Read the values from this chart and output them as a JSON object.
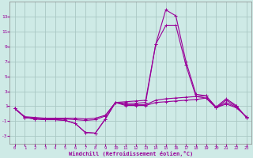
{
  "title": "",
  "xlabel": "Windchill (Refroidissement éolien,°C)",
  "background_color": "#ceeae6",
  "grid_color": "#aac8c4",
  "line_color": "#990099",
  "x_values": [
    0,
    1,
    2,
    3,
    4,
    5,
    6,
    7,
    8,
    9,
    10,
    11,
    12,
    13,
    14,
    15,
    16,
    17,
    18,
    19,
    20,
    21,
    22,
    23
  ],
  "series": [
    [
      0.7,
      -0.5,
      -0.7,
      -0.8,
      -0.8,
      -0.9,
      -1.3,
      -2.5,
      -2.6,
      -0.7,
      1.5,
      1.6,
      1.7,
      1.8,
      9.3,
      13.9,
      13.1,
      7.0,
      2.6,
      2.4,
      0.9,
      2.0,
      1.1,
      -0.5
    ],
    [
      0.7,
      -0.5,
      -0.7,
      -0.8,
      -0.8,
      -0.9,
      -1.3,
      -2.5,
      -2.6,
      -0.7,
      1.5,
      1.4,
      1.4,
      1.5,
      9.3,
      11.8,
      11.8,
      6.5,
      2.3,
      2.1,
      0.8,
      1.8,
      1.0,
      -0.5
    ],
    [
      0.7,
      -0.5,
      -0.6,
      -0.7,
      -0.7,
      -0.7,
      -0.8,
      -0.9,
      -0.8,
      -0.3,
      1.5,
      1.2,
      1.2,
      1.2,
      1.8,
      2.0,
      2.1,
      2.2,
      2.3,
      2.4,
      0.8,
      1.5,
      0.9,
      -0.4
    ],
    [
      0.7,
      -0.4,
      -0.5,
      -0.6,
      -0.6,
      -0.6,
      -0.6,
      -0.7,
      -0.6,
      -0.2,
      1.5,
      1.1,
      1.1,
      1.1,
      1.5,
      1.6,
      1.7,
      1.8,
      1.9,
      2.1,
      0.8,
      1.3,
      0.8,
      -0.4
    ]
  ],
  "ylim": [
    -4,
    15
  ],
  "xlim": [
    -0.5,
    23.5
  ],
  "yticks": [
    -3,
    -1,
    1,
    3,
    5,
    7,
    9,
    11,
    13
  ],
  "xticks": [
    0,
    1,
    2,
    3,
    4,
    5,
    6,
    7,
    8,
    9,
    10,
    11,
    12,
    13,
    14,
    15,
    16,
    17,
    18,
    19,
    20,
    21,
    22,
    23
  ]
}
